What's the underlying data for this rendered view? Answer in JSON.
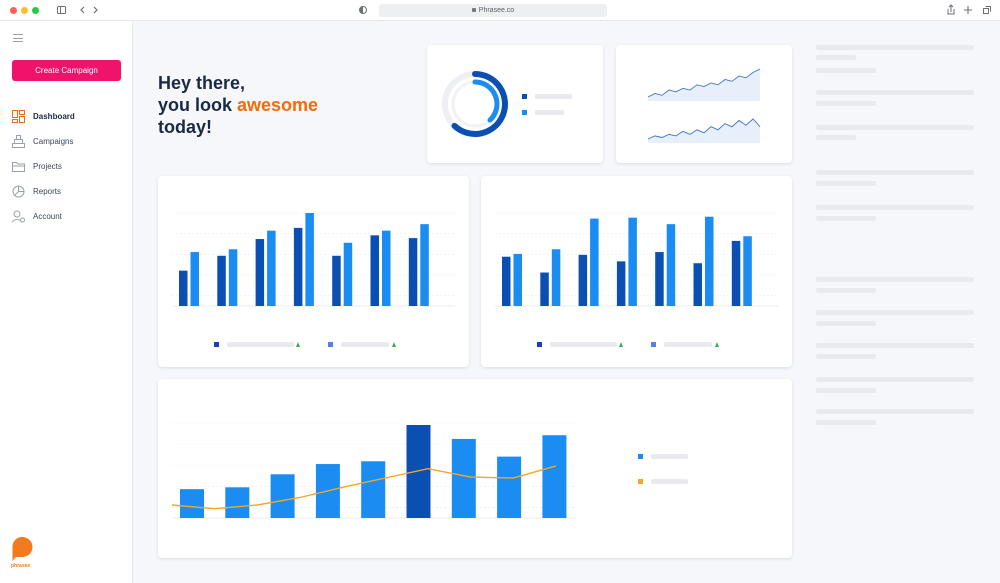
{
  "browser": {
    "url": "Phrasee.co",
    "traffic_lights": [
      "#ff5f57",
      "#febc2e",
      "#28c840"
    ]
  },
  "sidebar": {
    "create_button_label": "Create Campaign",
    "items": [
      {
        "label": "Dashboard",
        "icon": "dashboard-icon",
        "active": true
      },
      {
        "label": "Campaigns",
        "icon": "campaigns-icon",
        "active": false
      },
      {
        "label": "Projects",
        "icon": "folder-icon",
        "active": false
      },
      {
        "label": "Reports",
        "icon": "reports-icon",
        "active": false
      },
      {
        "label": "Account",
        "icon": "account-icon",
        "active": false
      }
    ],
    "logo_text": "phrasee"
  },
  "greeting": {
    "line1": "Hey there,",
    "line2_prefix": "you look ",
    "line2_highlight": "awesome",
    "line3": "today!"
  },
  "colors": {
    "accent": "#f0136c",
    "highlight": "#f46a0c",
    "dark_blue": "#0b4fb3",
    "light_blue": "#1a8cf2",
    "indigo": "#1d3cc0",
    "periwinkle": "#5b7cf0",
    "green": "#32b34a",
    "orange": "#f5a623"
  },
  "chart_data": [
    {
      "type": "pie",
      "chart": "donut",
      "values": [
        0.62,
        0.38
      ],
      "series": [
        {
          "color": "#0b4fb3"
        },
        {
          "color": "#1a8cf2"
        }
      ]
    },
    {
      "type": "line",
      "chart": "sparkline-1",
      "values": [
        3,
        4,
        3.5,
        5,
        4.5,
        5.5,
        5,
        6.5,
        6,
        7,
        6.5,
        8,
        7.5,
        9,
        8.5,
        10,
        11
      ]
    },
    {
      "type": "line",
      "chart": "sparkline-2",
      "values": [
        2,
        3,
        2.5,
        3.5,
        3,
        4.5,
        3.5,
        5,
        4,
        6,
        5,
        7,
        6,
        8,
        6.5,
        8.5,
        6
      ]
    },
    {
      "type": "bar",
      "chart": "grouped-bars-left",
      "ylim": [
        0,
        100
      ],
      "series": [
        {
          "color": "#0b4fb3",
          "values": [
            38,
            54,
            72,
            84,
            54,
            76,
            73
          ]
        },
        {
          "color": "#1a8cf2",
          "values": [
            58,
            61,
            81,
            100,
            68,
            81,
            88
          ]
        }
      ]
    },
    {
      "type": "bar",
      "chart": "grouped-bars-right",
      "ylim": [
        0,
        100
      ],
      "series": [
        {
          "color": "#0b4fb3",
          "values": [
            53,
            36,
            55,
            48,
            58,
            46,
            70
          ]
        },
        {
          "color": "#1a8cf2",
          "values": [
            56,
            61,
            94,
            95,
            88,
            96,
            75
          ]
        }
      ]
    },
    {
      "type": "bar",
      "chart": "combo-bar-line",
      "ylim": [
        0,
        100
      ],
      "values": [
        31,
        33,
        47,
        58,
        61,
        100,
        85,
        66,
        89
      ],
      "highlight_index": 5,
      "line_values": [
        14,
        10,
        14,
        22,
        33,
        43,
        53,
        44,
        43,
        56
      ]
    }
  ]
}
